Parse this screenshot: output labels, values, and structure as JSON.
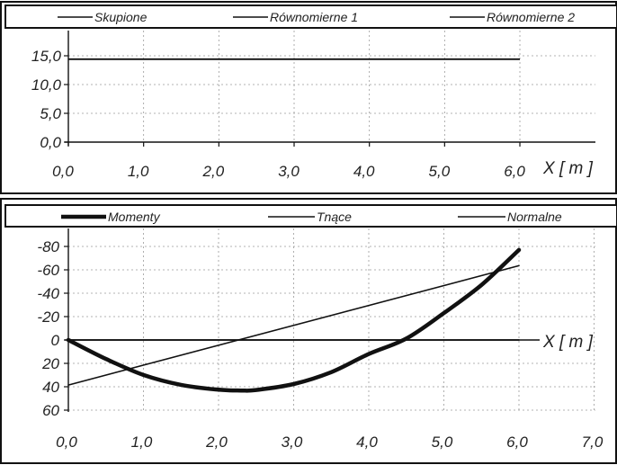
{
  "chart_data": [
    {
      "type": "line",
      "legend": [
        "Skupione",
        "Równomierne 1",
        "Równomierne 2"
      ],
      "xlabel": "X [ m ]",
      "y_tick_labels": [
        "15,0",
        "10,0",
        "5,0",
        "0,0"
      ],
      "x_tick_labels": [
        "0,0",
        "1,0",
        "2,0",
        "3,0",
        "4,0",
        "5,0",
        "6,0"
      ],
      "ylim": [
        0,
        20
      ],
      "xlim": [
        0,
        6
      ],
      "grid": true,
      "legend_position": "top",
      "series": [
        {
          "name": "Równomierne 1",
          "x": [
            0,
            6
          ],
          "y": [
            14.4,
            14.4
          ]
        }
      ]
    },
    {
      "type": "line",
      "legend": [
        "Momenty",
        "Tnące",
        "Normalne"
      ],
      "xlabel": "X [ m ]",
      "y_tick_labels": [
        "-80",
        "-60",
        "-40",
        "-20",
        "0",
        "20",
        "40",
        "60"
      ],
      "x_tick_labels": [
        "0,0",
        "1,0",
        "2,0",
        "3,0",
        "4,0",
        "5,0",
        "6,0",
        "7,0"
      ],
      "ylim": [
        -100,
        60
      ],
      "y_inverted": true,
      "xlim": [
        0,
        7
      ],
      "grid": true,
      "legend_position": "top",
      "series": [
        {
          "name": "Momenty",
          "x": [
            0,
            0.5,
            1,
            1.5,
            2,
            2.3,
            2.5,
            3,
            3.5,
            4,
            4.5,
            5,
            5.5,
            6
          ],
          "y": [
            0,
            16.2,
            29.9,
            38.4,
            42.5,
            43.2,
            42.8,
            37.7,
            27.5,
            12.0,
            -1.2,
            -23.0,
            -47.0,
            -77.0
          ]
        },
        {
          "name": "Tnące",
          "x": [
            0,
            6
          ],
          "y": [
            38.5,
            -63.5
          ]
        },
        {
          "name": "Normalne",
          "x": [
            0,
            6
          ],
          "y": [
            0,
            0
          ]
        }
      ]
    }
  ]
}
